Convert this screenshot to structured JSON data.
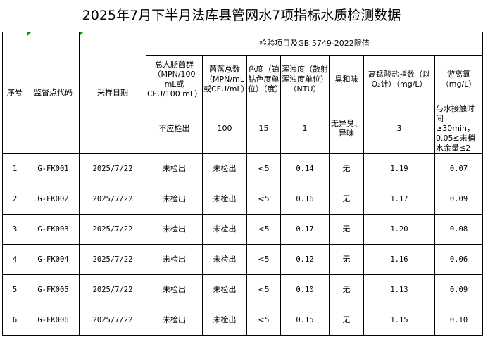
{
  "title": "2025年7月下半月法库县管网水7项指标水质检测数据",
  "headers": {
    "seq": "序号",
    "code": "监督点代码",
    "date": "采样日期",
    "group": "检验项目及GB 5749-2022限值",
    "items": [
      "总大肠菌群（MPN/100 mL或 CFU/100 mL）",
      "菌落总数（MPN/mL或CFU/mL）",
      "色度（铂钴色度单位）（度）",
      "浑浊度（散射浑浊度单位）（NTU）",
      "臭和味",
      "高锰酸盐指数（以O₂计）（mg/L）",
      "游离氯（mg/L）"
    ]
  },
  "limits": [
    "不应检出",
    "100",
    "15",
    "1",
    "无异臭、异味",
    "3",
    "与水接触时间≥30min，0.05≤末梢水余量≤2"
  ],
  "rows": [
    {
      "seq": "1",
      "code": "G-FK001",
      "date": "2025/7/22",
      "values": [
        "未检出",
        "未检出",
        "<5",
        "0.14",
        "无",
        "1.19",
        "0.07"
      ]
    },
    {
      "seq": "2",
      "code": "G-FK002",
      "date": "2025/7/22",
      "values": [
        "未检出",
        "未检出",
        "<5",
        "0.16",
        "无",
        "1.17",
        "0.09"
      ]
    },
    {
      "seq": "3",
      "code": "G-FK003",
      "date": "2025/7/22",
      "values": [
        "未检出",
        "未检出",
        "<5",
        "0.17",
        "无",
        "1.20",
        "0.08"
      ]
    },
    {
      "seq": "4",
      "code": "G-FK004",
      "date": "2025/7/22",
      "values": [
        "未检出",
        "未检出",
        "<5",
        "0.12",
        "无",
        "1.16",
        "0.06"
      ]
    },
    {
      "seq": "5",
      "code": "G-FK005",
      "date": "2025/7/22",
      "values": [
        "未检出",
        "未检出",
        "<5",
        "0.10",
        "无",
        "1.13",
        "0.09"
      ]
    },
    {
      "seq": "6",
      "code": "G-FK006",
      "date": "2025/7/22",
      "values": [
        "未检出",
        "未检出",
        "<5",
        "0.15",
        "无",
        "1.15",
        "0.10"
      ]
    }
  ]
}
